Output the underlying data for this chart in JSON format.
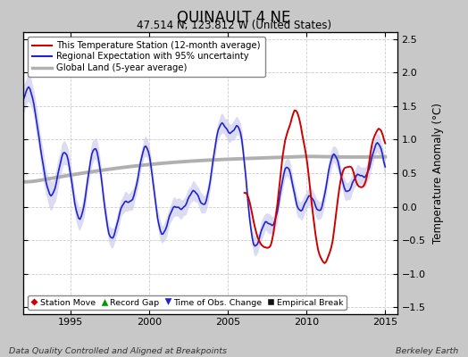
{
  "title": "QUINAULT 4 NE",
  "subtitle": "47.514 N, 123.812 W (United States)",
  "ylabel": "Temperature Anomaly (°C)",
  "footer_left": "Data Quality Controlled and Aligned at Breakpoints",
  "footer_right": "Berkeley Earth",
  "xlim": [
    1992.0,
    2015.8
  ],
  "ylim": [
    -1.6,
    2.6
  ],
  "yticks": [
    -1.5,
    -1.0,
    -0.5,
    0.0,
    0.5,
    1.0,
    1.5,
    2.0,
    2.5
  ],
  "xticks": [
    1995,
    2000,
    2005,
    2010,
    2015
  ],
  "bg_color": "#c8c8c8",
  "plot_bg_color": "#ffffff",
  "legend_entries": [
    {
      "label": "This Temperature Station (12-month average)",
      "color": "#cc0000",
      "lw": 1.5
    },
    {
      "label": "Regional Expectation with 95% uncertainty",
      "color": "#2222cc",
      "lw": 1.5
    },
    {
      "label": "Global Land (5-year average)",
      "color": "#aaaaaa",
      "lw": 2.5
    }
  ],
  "marker_legend": [
    {
      "label": "Station Move",
      "marker": "D",
      "color": "#cc0000"
    },
    {
      "label": "Record Gap",
      "marker": "^",
      "color": "#009900"
    },
    {
      "label": "Time of Obs. Change",
      "marker": "v",
      "color": "#2222cc"
    },
    {
      "label": "Empirical Break",
      "marker": "s",
      "color": "#111111"
    }
  ]
}
